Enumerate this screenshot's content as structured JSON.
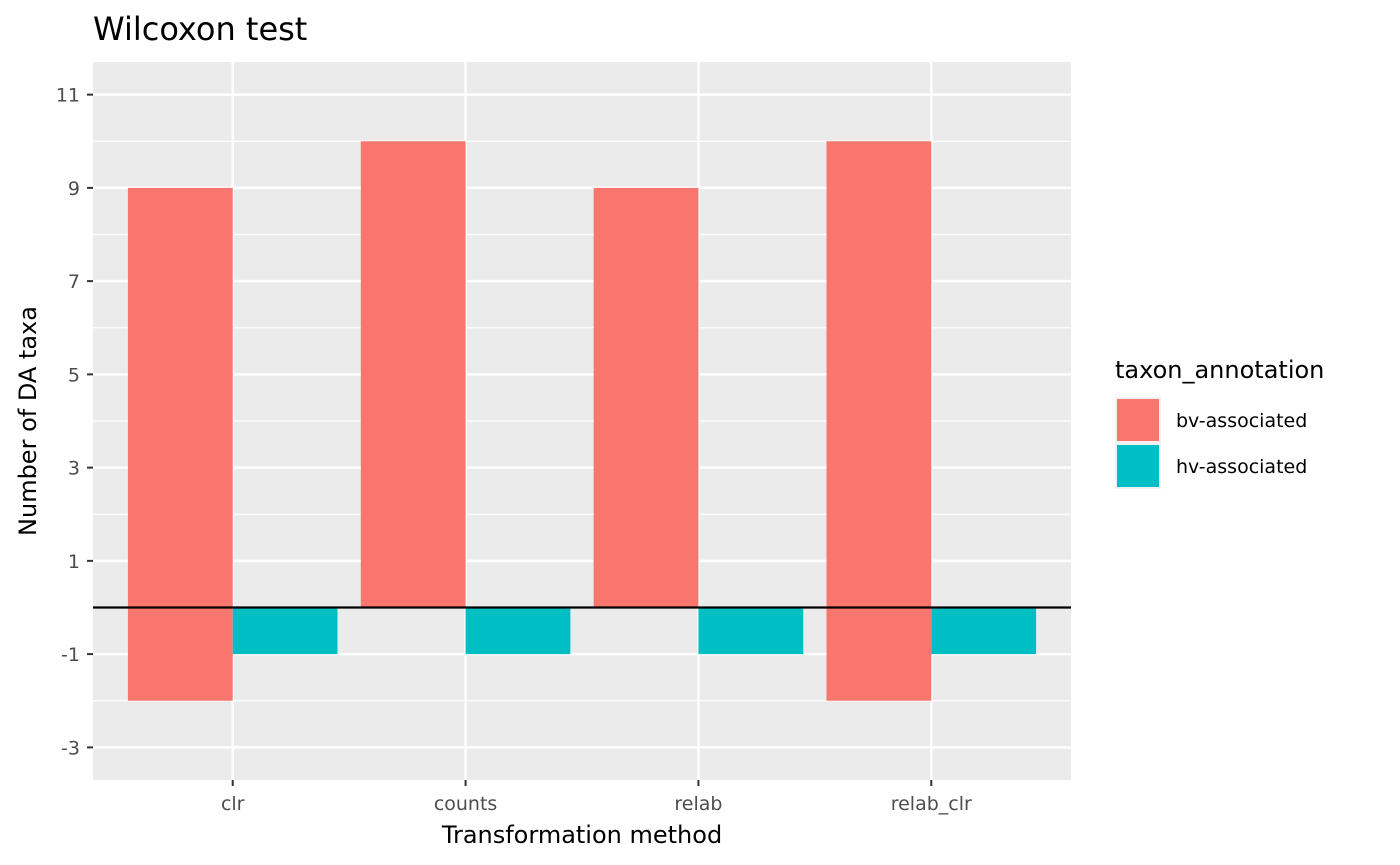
{
  "chart_data": {
    "type": "bar",
    "title": "Wilcoxon test",
    "xlabel": "Transformation method",
    "ylabel": "Number of DA taxa",
    "categories": [
      "clr",
      "counts",
      "relab",
      "relab_clr"
    ],
    "yticks": [
      "11",
      "9",
      "7",
      "5",
      "3",
      "1",
      "-1",
      "-3"
    ],
    "ytick_values": [
      11,
      9,
      7,
      5,
      3,
      1,
      -1,
      -3
    ],
    "ylim": [
      -3.7,
      11.7
    ],
    "grid": true,
    "legend": {
      "title": "taxon_annotation",
      "position": "right"
    },
    "series": [
      {
        "name": "bv-associated",
        "color": "#F8766D",
        "segments": [
          {
            "category": "clr",
            "value": 9
          },
          {
            "category": "clr",
            "value": -2
          },
          {
            "category": "counts",
            "value": 10
          },
          {
            "category": "relab",
            "value": 9
          },
          {
            "category": "relab_clr",
            "value": 10
          },
          {
            "category": "relab_clr",
            "value": -2
          }
        ]
      },
      {
        "name": "hv-associated",
        "color": "#00BFC4",
        "segments": [
          {
            "category": "clr",
            "value": -1
          },
          {
            "category": "counts",
            "value": -1
          },
          {
            "category": "relab",
            "value": -1
          },
          {
            "category": "relab_clr",
            "value": -1
          }
        ]
      }
    ],
    "reference_line": {
      "y": 0,
      "color": "#000000"
    }
  }
}
